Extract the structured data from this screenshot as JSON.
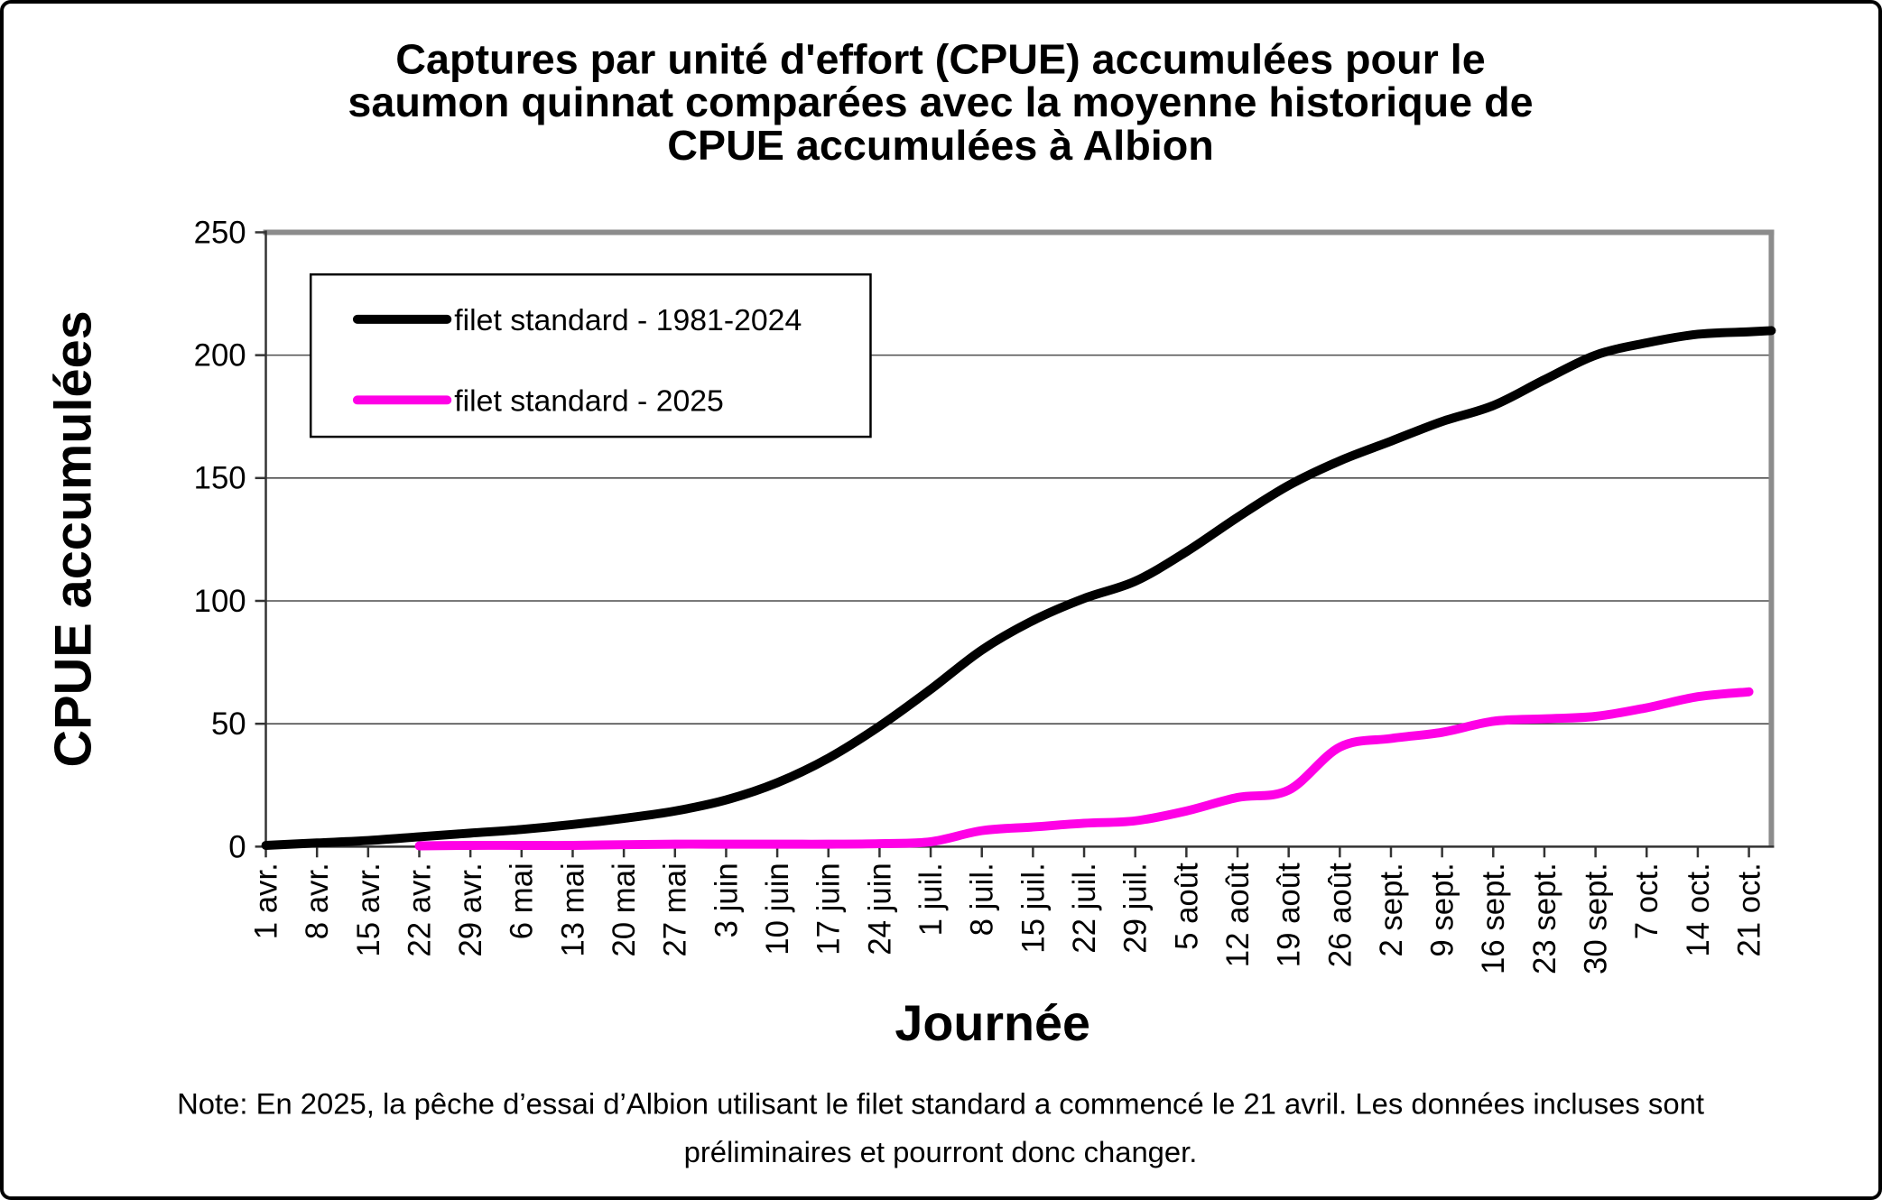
{
  "figure": {
    "background": "#FFFFFF",
    "border_color": "#000000"
  },
  "chart_data": {
    "type": "line",
    "title": "Captures par unité d'effort (CPUE) accumulées pour le saumon quinnat comparées avec la moyenne historique de CPUE accumulées à Albion",
    "title_lines": [
      "Captures par unité d'effort (CPUE) accumulées pour le",
      "saumon quinnat comparées avec la moyenne historique de",
      "CPUE accumulées à Albion"
    ],
    "xlabel": "Journée",
    "ylabel": "CPUE accumulées",
    "ylim": [
      0,
      250
    ],
    "y_ticks": [
      0,
      50,
      100,
      150,
      200,
      250
    ],
    "grid": true,
    "legend_position": "top-left-inside",
    "categories": [
      "1 avr.",
      "8 avr.",
      "15 avr.",
      "22 avr.",
      "29 avr.",
      "6 mai",
      "13 mai",
      "20 mai",
      "27 mai",
      "3 juin",
      "10 juin",
      "17 juin",
      "24 juin",
      "1 juil.",
      "8 juil.",
      "15 juil.",
      "22 juil.",
      "29 juil.",
      "5 août",
      "12 août",
      "19 août",
      "26 août",
      "2 sept.",
      "9 sept.",
      "16 sept.",
      "23 sept.",
      "30 sept.",
      "7 oct.",
      "14 oct.",
      "21 oct."
    ],
    "series": [
      {
        "name": "filet standard - 1981-2024",
        "color": "#000000",
        "values": [
          0.5,
          1.5,
          2.5,
          4,
          5.5,
          7,
          9,
          11.5,
          14.5,
          19,
          26,
          36,
          49,
          64,
          80,
          92,
          101,
          108,
          120,
          134,
          147,
          157,
          165,
          173,
          179.5,
          190,
          200,
          205,
          208.5,
          209.5
        ],
        "extend_to_right_edge_value": 210
      },
      {
        "name": "filet standard - 2025",
        "color": "#FF00E6",
        "values": [
          null,
          null,
          null,
          0.3,
          0.5,
          0.5,
          0.5,
          0.8,
          1,
          1,
          1,
          1,
          1.2,
          2,
          6.5,
          8,
          9.5,
          10.5,
          14.5,
          20,
          23,
          40.5,
          44,
          46.5,
          51,
          52,
          53,
          56.5,
          61,
          63
        ]
      }
    ],
    "note_lines": [
      "Note: En 2025, la pêche d’essai d’Albion utilisant le filet standard a commencé le 21 avril. Les données incluses sont",
      "préliminaires et pourront donc changer."
    ]
  }
}
